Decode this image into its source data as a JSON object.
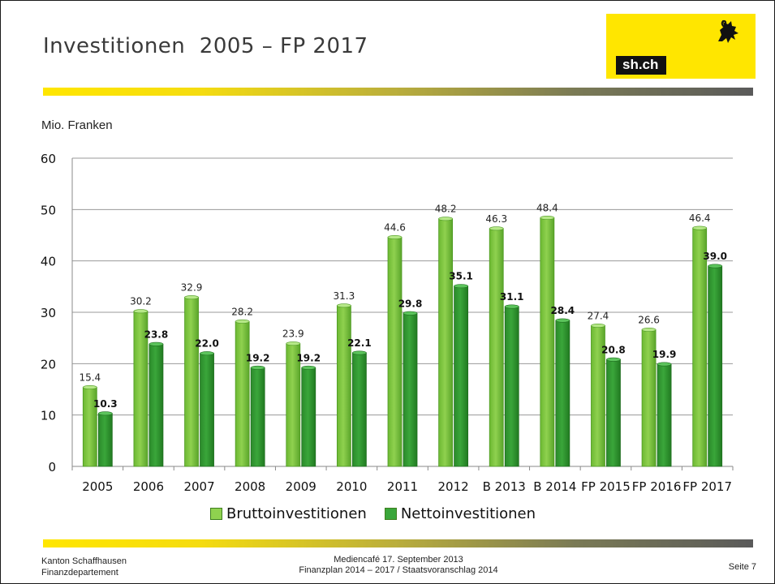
{
  "title": "Investitionen  2005 – FP 2017",
  "logo": {
    "text": "sh.ch",
    "icon": "ram-icon",
    "bg_color": "#ffe600"
  },
  "colors": {
    "brutto": "#8fd14f",
    "netto": "#3aa63a",
    "band_start": "#ffe600",
    "band_end": "#5a5a5a"
  },
  "chart_data": {
    "type": "bar",
    "ylabel": "Mio. Franken",
    "xlabel": "",
    "ylim": [
      0,
      60
    ],
    "yticks": [
      0,
      10,
      20,
      30,
      40,
      50,
      60
    ],
    "grid": true,
    "legend_position": "bottom",
    "categories": [
      "2005",
      "2006",
      "2007",
      "2008",
      "2009",
      "2010",
      "2011",
      "2012",
      "B 2013",
      "B 2014",
      "FP 2015",
      "FP 2016",
      "FP 2017"
    ],
    "series": [
      {
        "name": "Bruttoinvestitionen",
        "values": [
          15.4,
          30.2,
          32.9,
          28.2,
          23.9,
          31.3,
          44.6,
          48.2,
          46.3,
          48.4,
          27.4,
          26.6,
          46.4
        ],
        "labels": [
          "15.4",
          "30.2",
          "32.9",
          "28.2",
          "23.9",
          "31.3",
          "44.6",
          "48.2",
          "46.3",
          "48.4",
          "27.4",
          "26.6",
          "46.4"
        ]
      },
      {
        "name": "Nettoinvestitionen",
        "values": [
          10.3,
          23.8,
          22.0,
          19.2,
          19.2,
          22.1,
          29.8,
          35.1,
          31.1,
          28.4,
          20.8,
          19.9,
          39.0
        ],
        "labels": [
          "10.3",
          "23.8",
          "22.0",
          "19.2",
          "19.2",
          "22.1",
          "29.8",
          "35.1",
          "31.1",
          "28.4",
          "20.8",
          "19.9",
          "39.0"
        ]
      }
    ]
  },
  "footer": {
    "left_line1": "Kanton Schaffhausen",
    "left_line2": "Finanzdepartement",
    "center_line1": "Mediencafé 17. September 2013",
    "center_line2": "Finanzplan 2014 – 2017 / Staatsvoranschlag 2014",
    "page": "Seite 7"
  }
}
